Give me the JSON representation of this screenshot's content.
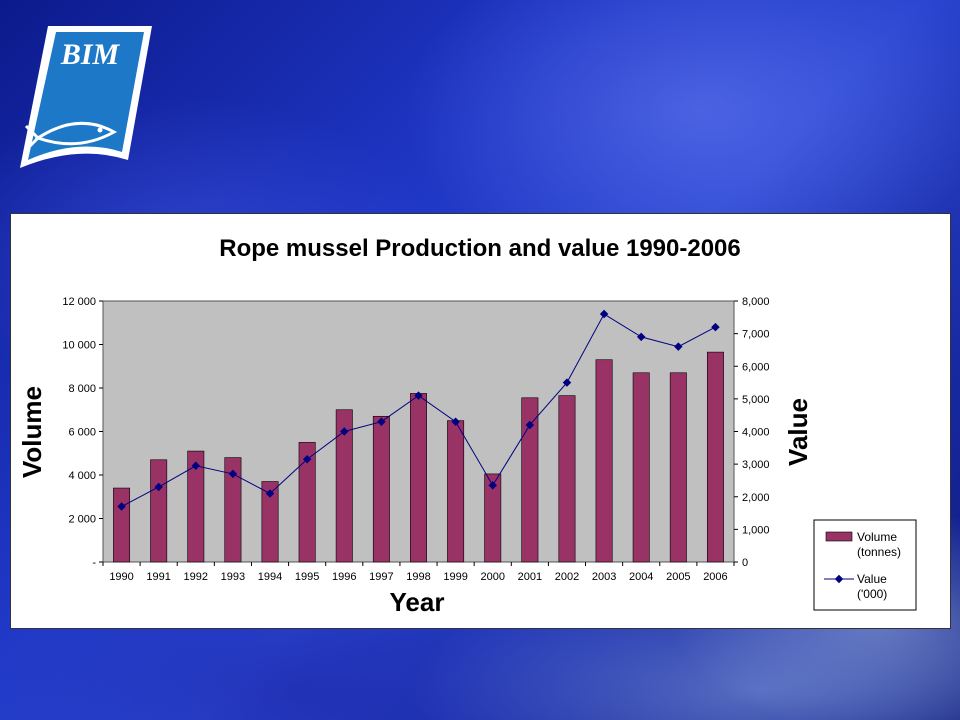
{
  "logo": {
    "text": "BIM",
    "icon": "fish-icon"
  },
  "colors": {
    "bar": "#993366",
    "line": "#000080",
    "plot_bg": "#c0c0c0"
  },
  "chart_data": {
    "type": "bar",
    "title": "Rope mussel Production and value 1990-2006",
    "xlabel": "Year",
    "ylabel": "Volume",
    "y2label": "Value",
    "categories": [
      "1990",
      "1991",
      "1992",
      "1993",
      "1994",
      "1995",
      "1996",
      "1997",
      "1998",
      "1999",
      "2000",
      "2001",
      "2002",
      "2003",
      "2004",
      "2005",
      "2006"
    ],
    "ylim": [
      0,
      12000
    ],
    "y2lim": [
      0,
      8000
    ],
    "yticks": [
      "-",
      "2 000",
      "4 000",
      "6 000",
      "8 000",
      "10 000",
      "12 000"
    ],
    "y2ticks": [
      "0",
      "1,000",
      "2,000",
      "3,000",
      "4,000",
      "5,000",
      "6,000",
      "7,000",
      "8,000"
    ],
    "grid": false,
    "legend_position": "bottom-right",
    "series": [
      {
        "name": "Volume (tonnes)",
        "legend_lines": [
          "Volume",
          "(tonnes)"
        ],
        "type": "bar",
        "axis": "left",
        "values": [
          3400,
          4700,
          5100,
          4800,
          3700,
          5500,
          7000,
          6700,
          7750,
          6500,
          4050,
          7550,
          7650,
          9300,
          8700,
          8700,
          9650
        ]
      },
      {
        "name": "Value ('000)",
        "legend_lines": [
          "Value",
          "('000)"
        ],
        "type": "line",
        "axis": "right",
        "values": [
          1700,
          2300,
          2950,
          2700,
          2100,
          3150,
          4000,
          4300,
          5100,
          4300,
          2350,
          4200,
          5500,
          7600,
          6900,
          6600,
          7200
        ]
      }
    ]
  }
}
